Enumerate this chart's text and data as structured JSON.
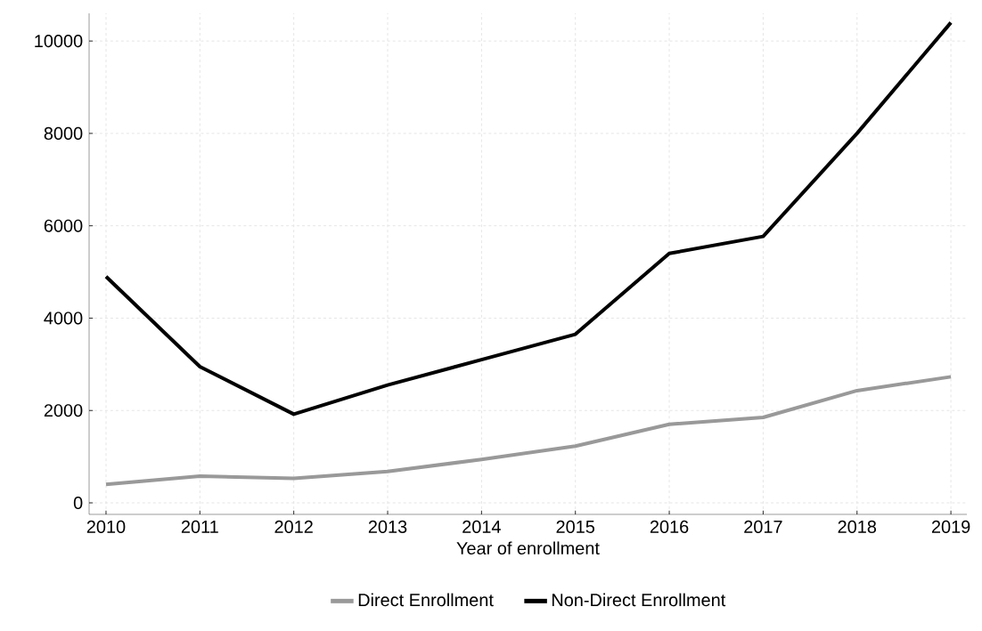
{
  "chart_data": {
    "type": "line",
    "xlabel": "Year of enrollment",
    "x": [
      2010,
      2011,
      2012,
      2013,
      2014,
      2015,
      2016,
      2017,
      2018,
      2019
    ],
    "series": [
      {
        "name": "Direct Enrollment",
        "color": "#999999",
        "values": [
          400,
          580,
          530,
          680,
          940,
          1230,
          1700,
          1850,
          2430,
          2730
        ]
      },
      {
        "name": "Non-Direct Enrollment",
        "color": "#000000",
        "values": [
          4900,
          2950,
          1920,
          2550,
          3100,
          3650,
          5400,
          5770,
          8000,
          10400
        ]
      }
    ],
    "xlim": [
      2009.82,
      2019.17
    ],
    "ylim": [
      -250,
      10600
    ],
    "xticks": [
      2010,
      2011,
      2012,
      2013,
      2014,
      2015,
      2016,
      2017,
      2018,
      2019
    ],
    "yticks": [
      0,
      2000,
      4000,
      6000,
      8000,
      10000
    ],
    "grid": true,
    "legend": "bottom",
    "marker": "none",
    "line_style": "solid"
  }
}
